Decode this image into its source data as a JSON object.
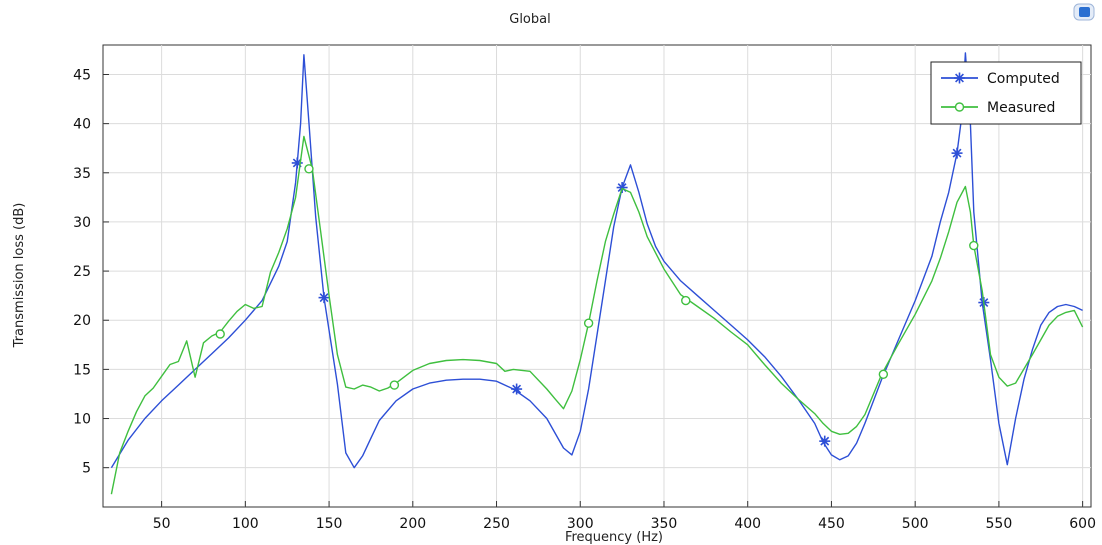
{
  "window": {
    "corner_icon": "comsol-plot-icon",
    "corner_icon_color": "#2a6fd1"
  },
  "chart_data": {
    "type": "line",
    "title": "Global",
    "xlabel": "Frequency (Hz)",
    "ylabel": "Transmission loss (dB)",
    "xlim": [
      15,
      605
    ],
    "ylim": [
      1,
      48
    ],
    "xticks": [
      50,
      100,
      150,
      200,
      250,
      300,
      350,
      400,
      450,
      500,
      550,
      600
    ],
    "yticks": [
      5,
      10,
      15,
      20,
      25,
      30,
      35,
      40,
      45
    ],
    "grid": true,
    "legend_position": "top-right",
    "series": [
      {
        "name": "Computed",
        "color": "#2d4fd6",
        "marker": "asterisk",
        "x": [
          20,
          30,
          40,
          50,
          60,
          70,
          80,
          90,
          100,
          110,
          120,
          125,
          130,
          133,
          135,
          138,
          142,
          147,
          155,
          160,
          165,
          170,
          175,
          180,
          190,
          200,
          210,
          220,
          230,
          240,
          250,
          260,
          270,
          280,
          290,
          295,
          300,
          305,
          310,
          315,
          320,
          325,
          330,
          335,
          340,
          345,
          350,
          360,
          370,
          380,
          390,
          400,
          410,
          420,
          430,
          440,
          445,
          450,
          455,
          460,
          465,
          470,
          480,
          490,
          500,
          510,
          515,
          520,
          525,
          528,
          530,
          533,
          535,
          540,
          545,
          550,
          555,
          560,
          565,
          570,
          575,
          580,
          585,
          590,
          595,
          600
        ],
        "y": [
          5.0,
          7.8,
          10.0,
          11.8,
          13.4,
          15.0,
          16.6,
          18.2,
          20.0,
          22.0,
          25.5,
          28.0,
          34.0,
          40.0,
          47.0,
          40.0,
          30.5,
          22.3,
          13.5,
          6.5,
          5.0,
          6.2,
          8.0,
          9.8,
          11.8,
          13.0,
          13.6,
          13.9,
          14.0,
          14.0,
          13.8,
          13.0,
          11.8,
          10.0,
          7.0,
          6.3,
          8.7,
          13.0,
          18.5,
          24.0,
          29.5,
          33.5,
          35.8,
          33.0,
          29.8,
          27.5,
          26.0,
          24.0,
          22.5,
          21.0,
          19.5,
          18.0,
          16.3,
          14.3,
          12.0,
          9.5,
          7.6,
          6.3,
          5.8,
          6.2,
          7.5,
          9.5,
          14.0,
          18.0,
          22.0,
          26.5,
          30.0,
          33.0,
          37.0,
          41.0,
          47.2,
          40.0,
          31.0,
          21.8,
          16.0,
          9.5,
          5.3,
          10.0,
          14.0,
          17.0,
          19.5,
          20.8,
          21.4,
          21.6,
          21.4,
          21.0
        ],
        "marker_x": [
          131,
          147,
          262,
          325,
          446,
          525,
          541
        ],
        "marker_y": [
          36.0,
          22.3,
          13.0,
          33.5,
          7.7,
          37.0,
          21.8
        ]
      },
      {
        "name": "Measured",
        "color": "#3fbf3f",
        "marker": "circle",
        "x": [
          20,
          25,
          30,
          35,
          40,
          45,
          50,
          55,
          60,
          65,
          70,
          75,
          80,
          85,
          90,
          95,
          100,
          105,
          110,
          115,
          120,
          125,
          130,
          135,
          140,
          145,
          150,
          155,
          160,
          165,
          170,
          175,
          180,
          185,
          190,
          200,
          210,
          220,
          230,
          240,
          250,
          255,
          260,
          270,
          280,
          285,
          290,
          295,
          300,
          305,
          310,
          315,
          320,
          325,
          330,
          335,
          340,
          350,
          360,
          370,
          380,
          390,
          400,
          410,
          420,
          430,
          440,
          445,
          450,
          455,
          460,
          465,
          470,
          480,
          490,
          500,
          510,
          515,
          520,
          525,
          530,
          533,
          535,
          540,
          545,
          550,
          555,
          560,
          570,
          580,
          585,
          590,
          595,
          600
        ],
        "y": [
          2.3,
          6.5,
          8.7,
          10.7,
          12.3,
          13.1,
          14.3,
          15.5,
          15.8,
          17.9,
          14.2,
          17.7,
          18.4,
          18.8,
          19.9,
          20.9,
          21.6,
          21.2,
          21.4,
          24.9,
          26.9,
          29.3,
          32.5,
          38.7,
          35.4,
          29.0,
          22.5,
          16.5,
          13.2,
          13.0,
          13.4,
          13.2,
          12.8,
          13.1,
          13.6,
          14.9,
          15.6,
          15.9,
          16.0,
          15.9,
          15.6,
          14.8,
          15.0,
          14.8,
          13.0,
          12.0,
          11.0,
          12.8,
          16.0,
          19.7,
          24.0,
          28.0,
          30.8,
          33.4,
          33.0,
          31.0,
          28.5,
          25.2,
          22.6,
          21.4,
          20.2,
          18.8,
          17.5,
          15.5,
          13.6,
          12.0,
          10.5,
          9.5,
          8.7,
          8.4,
          8.5,
          9.2,
          10.4,
          14.5,
          17.6,
          20.6,
          24.0,
          26.3,
          29.0,
          32.0,
          33.6,
          31.0,
          27.6,
          23.0,
          16.5,
          14.2,
          13.3,
          13.6,
          16.5,
          19.5,
          20.4,
          20.8,
          21.0,
          19.3
        ],
        "marker_x": [
          85,
          138,
          189,
          305,
          363,
          481,
          535
        ],
        "marker_y": [
          18.6,
          35.4,
          13.4,
          19.7,
          22.0,
          14.5,
          27.6
        ]
      }
    ]
  }
}
